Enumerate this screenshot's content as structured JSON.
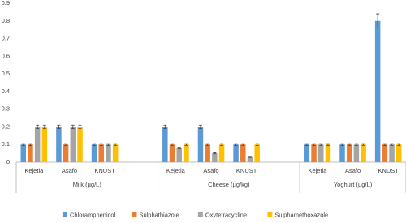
{
  "chart_data": {
    "type": "bar",
    "groups": [
      "Milk (µg/L)",
      "Cheese (µg/kg)",
      "Yoghurt (µg/L)"
    ],
    "categories": [
      "Kejetia",
      "Asafo",
      "KNUST",
      null,
      "Kejetia",
      "Asafo",
      "KNUST",
      null,
      "Kejetia",
      "Asafo",
      "KNUST"
    ],
    "series": [
      {
        "name": "Chloramphenicol",
        "color": "#5b9bd5",
        "values": [
          0.1,
          0.2,
          0.1,
          null,
          0.2,
          0.2,
          0.1,
          null,
          0.1,
          0.1,
          0.8
        ],
        "errors": [
          0.005,
          0.01,
          0.005,
          null,
          0.01,
          0.01,
          0.005,
          null,
          0.005,
          0.005,
          0.04
        ]
      },
      {
        "name": "Sulphathiazole",
        "color": "#ed7d31",
        "values": [
          0.1,
          0.1,
          0.1,
          null,
          0.1,
          0.1,
          0.1,
          null,
          0.1,
          0.1,
          0.1
        ],
        "errors": [
          0.005,
          0.005,
          0.005,
          null,
          0.005,
          0.005,
          0.005,
          null,
          0.005,
          0.005,
          0.005
        ]
      },
      {
        "name": "Oxytetracycline",
        "color": "#a5a5a5",
        "values": [
          0.2,
          0.2,
          0.1,
          null,
          0.08,
          0.05,
          0.03,
          null,
          0.1,
          0.1,
          0.1
        ],
        "errors": [
          0.01,
          0.01,
          0.005,
          null,
          0.005,
          0.003,
          0.003,
          null,
          0.005,
          0.005,
          0.005
        ]
      },
      {
        "name": "Sulphamethoxazole",
        "color": "#ffc000",
        "values": [
          0.2,
          0.2,
          0.1,
          null,
          0.1,
          0.1,
          0.1,
          null,
          0.1,
          0.1,
          0.1
        ],
        "errors": [
          0.01,
          0.01,
          0.005,
          null,
          0.005,
          0.005,
          0.005,
          null,
          0.005,
          0.005,
          0.005
        ]
      }
    ],
    "ylim": [
      0,
      0.9
    ],
    "yticks": [
      0,
      0.1,
      0.2,
      0.3,
      0.4,
      0.5,
      0.6,
      0.7,
      0.8,
      0.9
    ],
    "grid": false
  }
}
